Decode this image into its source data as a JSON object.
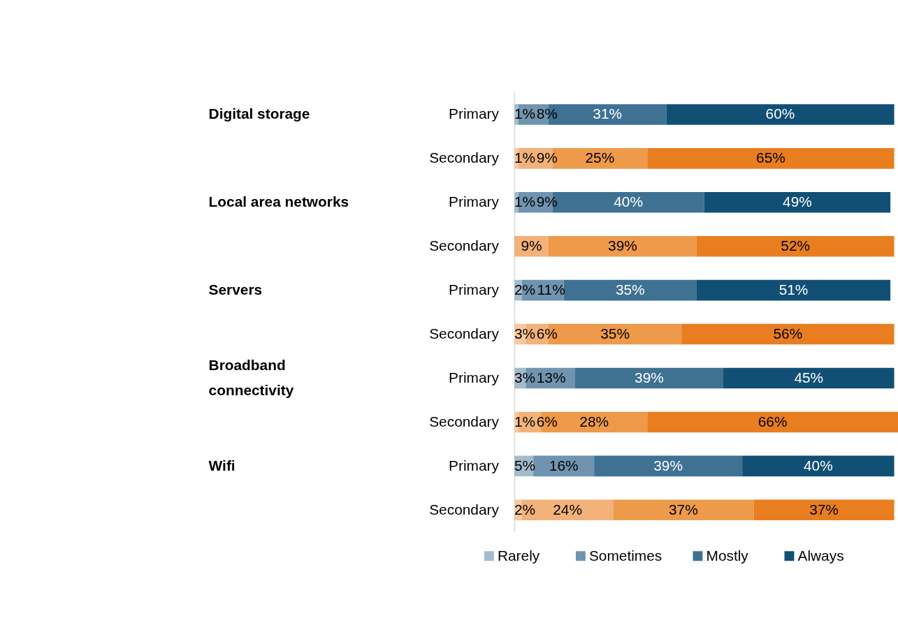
{
  "chart_data": {
    "type": "bar",
    "orientation": "horizontal",
    "stacked": true,
    "data_labels": true,
    "legend": "bottom",
    "grid": false,
    "categories": [
      "Primary",
      "Secondary",
      "Primary",
      "Secondary",
      "Primary",
      "Secondary",
      "Primary",
      "Secondary",
      "Primary",
      "Secondary"
    ],
    "annotations": [
      "Digital storage",
      "Local area networks",
      "Servers",
      "Broadband connectivity",
      "Wifi"
    ],
    "series": [
      {
        "name": "Rarely",
        "color": "#a3bccc",
        "colors": [
          "#a3bccc",
          "#f6c9a0",
          "#a3bccc",
          "#f6c9a0",
          "#a3bccc",
          "#f6c9a0",
          "#a3bccc",
          "#f6c9a0",
          "#a3bccc",
          "#f6c9a0"
        ],
        "values": [
          1,
          1,
          1,
          null,
          2,
          3,
          3,
          1,
          5,
          2
        ],
        "value_labels": [
          "1%",
          "1%",
          "1%",
          null,
          "2%",
          "3%",
          "3%",
          "1%",
          "5%",
          "2%"
        ]
      },
      {
        "name": "Sometimes",
        "color": "#7094b0",
        "colors": [
          "#7094b0",
          "#f2b27a",
          "#7094b0",
          "#f2b27a",
          "#7094b0",
          "#f2b27a",
          "#7094b0",
          "#f2b27a",
          "#7094b0",
          "#f2b27a"
        ],
        "values": [
          8,
          9,
          9,
          9,
          11,
          6,
          13,
          6,
          16,
          24
        ],
        "value_labels": [
          "8%",
          "9%",
          "9%",
          "9%",
          "11%",
          "6%",
          "13%",
          "6%",
          "16%",
          "24%"
        ]
      },
      {
        "name": "Mostly",
        "color": "#3f7193",
        "colors": [
          "#3f7193",
          "#ee9a4b",
          "#3f7193",
          "#ee9a4b",
          "#3f7193",
          "#ee9a4b",
          "#3f7193",
          "#ee9a4b",
          "#3f7193",
          "#ee9a4b"
        ],
        "values": [
          31,
          25,
          40,
          39,
          35,
          35,
          39,
          28,
          39,
          37
        ],
        "value_labels": [
          "31%",
          "25%",
          "40%",
          "39%",
          "35%",
          "35%",
          "39%",
          "28%",
          "39%",
          "37%"
        ]
      },
      {
        "name": "Always",
        "color": "#114f75",
        "colors": [
          "#114f75",
          "#e87e1f",
          "#114f75",
          "#e87e1f",
          "#114f75",
          "#e87e1f",
          "#114f75",
          "#e87e1f",
          "#114f75",
          "#e87e1f"
        ],
        "values": [
          60,
          65,
          49,
          52,
          51,
          56,
          45,
          66,
          40,
          37
        ],
        "value_labels": [
          "60%",
          "65%",
          "49%",
          "52%",
          "51%",
          "56%",
          "45%",
          "66%",
          "40%",
          "37%"
        ]
      }
    ]
  }
}
